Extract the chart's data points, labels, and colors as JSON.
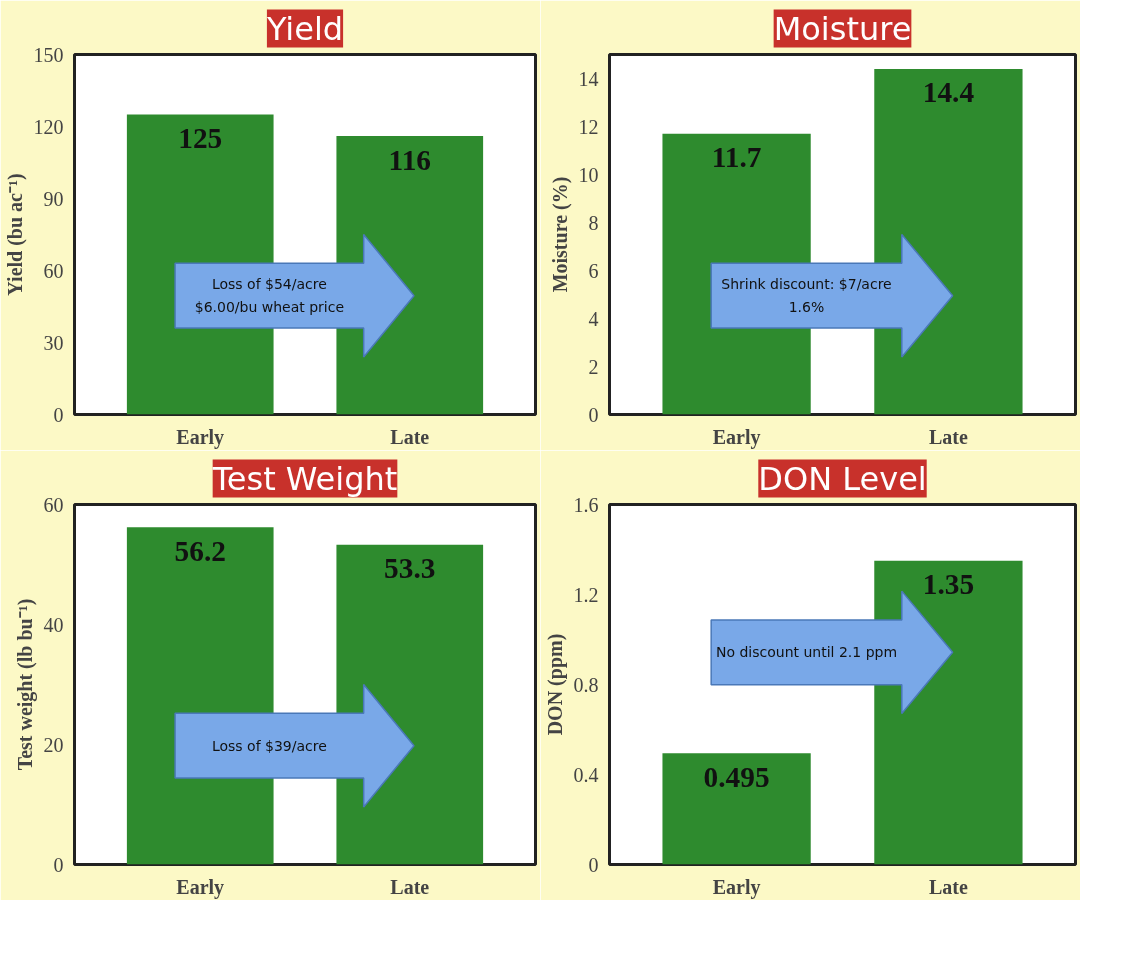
{
  "chart_data": [
    {
      "type": "bar",
      "title": "Yield",
      "ylabel": "Yield (bu ac⁻¹)",
      "categories": [
        "Early",
        "Late"
      ],
      "values": [
        125,
        116
      ],
      "color": "#2e8b2e",
      "ylim": [
        0,
        150
      ],
      "yticks": [
        0,
        30,
        60,
        90,
        120,
        150
      ],
      "data_labels": true,
      "annotations": [
        "Loss of $54/acre\n$6.00/bu wheat price"
      ]
    },
    {
      "type": "bar",
      "title": "Moisture",
      "ylabel": "Moisture (%)",
      "categories": [
        "Early",
        "Late"
      ],
      "values": [
        11.7,
        14.4
      ],
      "color": "#2e8b2e",
      "ylim": [
        0,
        15
      ],
      "yticks": [
        0,
        2,
        4,
        6,
        8,
        10,
        12,
        14
      ],
      "data_labels": true,
      "annotations": [
        "Shrink discount: $7/acre\n1.6%"
      ]
    },
    {
      "type": "bar",
      "title": "Test Weight",
      "ylabel": "Test weight (lb bu⁻¹)",
      "categories": [
        "Early",
        "Late"
      ],
      "values": [
        56.2,
        53.3
      ],
      "color": "#2e8b2e",
      "ylim": [
        0,
        60
      ],
      "yticks": [
        0,
        20,
        40,
        60
      ],
      "data_labels": true,
      "annotations": [
        "Loss of $39/acre"
      ]
    },
    {
      "type": "bar",
      "title": "DON Level",
      "ylabel": "DON (ppm)",
      "categories": [
        "Early",
        "Late"
      ],
      "values": [
        0.495,
        1.35
      ],
      "color": "#2e8b2e",
      "ylim": [
        0,
        1.6
      ],
      "yticks": [
        0,
        0.4,
        0.8,
        1.2,
        1.6
      ],
      "data_labels": true,
      "annotations": [
        "No discount until 2.1 ppm"
      ]
    }
  ]
}
